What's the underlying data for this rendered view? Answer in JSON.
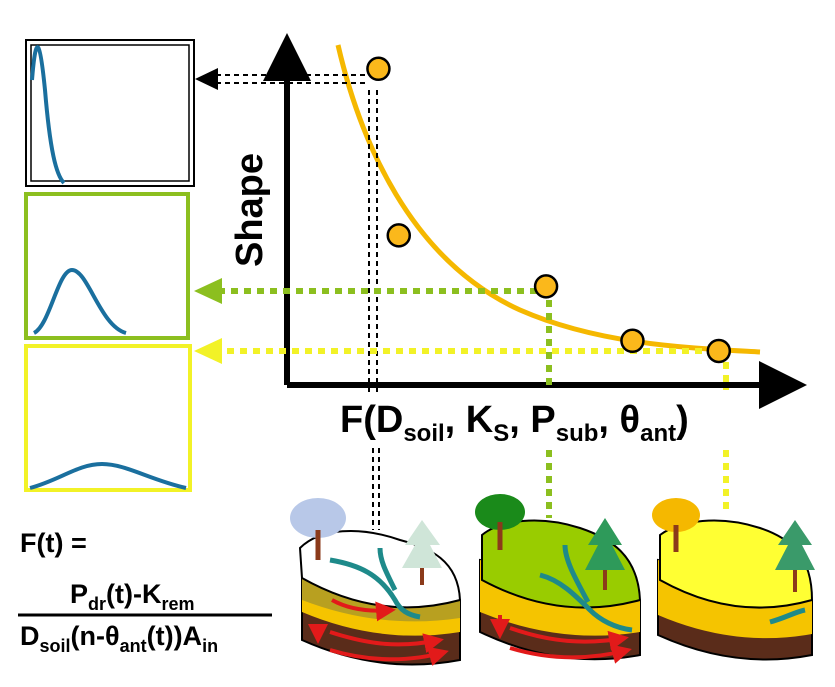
{
  "chart_data": {
    "type": "scatter",
    "title": "",
    "ylabel": "Shape",
    "xlabel": "F(D_soil, K_S, P_sub, θ_ant)",
    "xlim": [
      0,
      10
    ],
    "ylim": [
      0,
      10
    ],
    "points": [
      {
        "x": 1.8,
        "y": 9.3
      },
      {
        "x": 2.2,
        "y": 4.4
      },
      {
        "x": 5.1,
        "y": 2.9
      },
      {
        "x": 6.8,
        "y": 1.3
      },
      {
        "x": 8.5,
        "y": 1.0
      }
    ],
    "fit_curve": {
      "type": "hyperbolic",
      "color": "#f5b800"
    }
  },
  "axis": {
    "ylabel": "Shape",
    "xlabel": {
      "f": "F(",
      "d": "D",
      "d_sub": "soil",
      "sep1": ", ",
      "k": "K",
      "k_sub": "S",
      "sep2": ", ",
      "p": "P",
      "p_sub": "sub",
      "sep3": ", ",
      "theta": "θ",
      "theta_sub": "ant",
      "close": ")"
    }
  },
  "formula": {
    "lhs": "F(t) =",
    "num_p": "P",
    "num_p_sub": "dr",
    "num_mid": "(t)-K",
    "num_k_sub": "rem",
    "den_d": "D",
    "den_d_sub": "soil",
    "den_mid": "(n-θ",
    "den_theta_sub": "ant",
    "den_mid2": "(t))A",
    "den_a_sub": "in"
  },
  "colors": {
    "curve": "#f5b800",
    "point_fill": "#fbb81b",
    "green": "#8cbf1f",
    "yellow": "#f2f227",
    "hydrograph": "#1a6f9e",
    "arrow": "#000000"
  }
}
